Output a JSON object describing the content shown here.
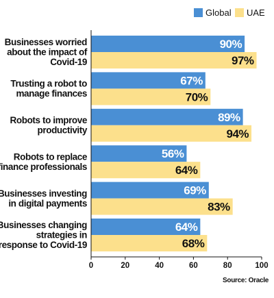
{
  "chart_data": {
    "type": "bar",
    "orientation": "horizontal",
    "categories": [
      [
        "Businesses worried",
        "about the impact of",
        "Covid-19"
      ],
      [
        "Trusting a robot to",
        "manage finances"
      ],
      [
        "Robots to improve",
        "productivity"
      ],
      [
        "Robots to replace",
        "finance professionals"
      ],
      [
        "Businesses investing",
        "in digital payments"
      ],
      [
        "Businesses changing",
        "strategies in",
        "response to Covid-19"
      ]
    ],
    "series": [
      {
        "name": "Global",
        "color": "#4a8fd4",
        "label_color": "#ffffff",
        "values": [
          90,
          67,
          89,
          56,
          69,
          64
        ],
        "labels": [
          "90%",
          "67%",
          "89%",
          "56%",
          "69%",
          "64%"
        ]
      },
      {
        "name": "UAE",
        "color": "#fce08c",
        "label_color": "#111111",
        "values": [
          97,
          70,
          94,
          64,
          83,
          68
        ],
        "labels": [
          "97%",
          "70%",
          "94%",
          "64%",
          "83%",
          "68%"
        ]
      }
    ],
    "xlim": [
      0,
      100
    ],
    "ticks": [
      0,
      20,
      40,
      60,
      80,
      100
    ],
    "tick_labels": [
      "0",
      "20",
      "40",
      "60",
      "80",
      "100"
    ],
    "grid": false,
    "legend_position": "top-right",
    "source": "Source: Oracle"
  }
}
